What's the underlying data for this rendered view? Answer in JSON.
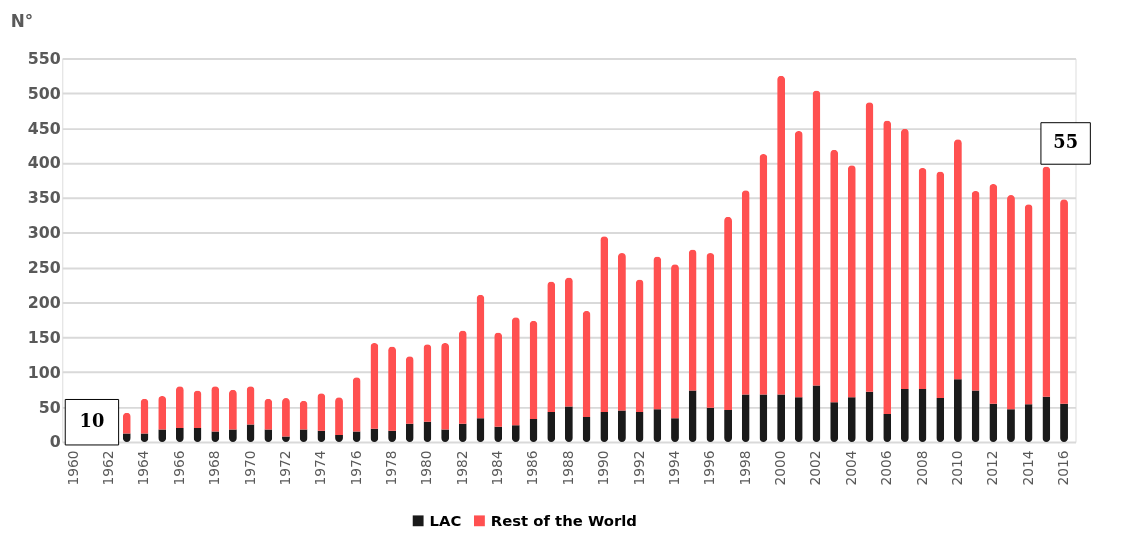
{
  "chart_data": {
    "type": "bar",
    "stacked": true,
    "ylabel": "N°",
    "categories": [
      "1960",
      null,
      "1962",
      null,
      "1964",
      null,
      "1966",
      null,
      "1968",
      null,
      "1970",
      null,
      "1972",
      null,
      "1974",
      null,
      "1976",
      null,
      "1978",
      null,
      "1980",
      null,
      "1982",
      null,
      "1984",
      null,
      "1986",
      null,
      "1988",
      null,
      "1990",
      null,
      "1992",
      null,
      "1994",
      null,
      "1996",
      null,
      "1998",
      null,
      "2000",
      null,
      "2002",
      null,
      "2004",
      null,
      "2006",
      null,
      "2008",
      null,
      "2010",
      null,
      "2012",
      null,
      "2014",
      null,
      "2016"
    ],
    "series": [
      {
        "name": "LAC",
        "color": "#1a1a1a",
        "values": [
          null,
          null,
          null,
          12,
          12,
          18,
          20,
          20,
          15,
          18,
          25,
          18,
          8,
          18,
          16,
          10,
          15,
          19,
          16,
          26,
          29,
          18,
          26,
          34,
          22,
          24,
          33,
          43,
          51,
          36,
          43,
          45,
          43,
          47,
          34,
          74,
          49,
          46,
          68,
          68,
          68,
          64,
          81,
          57,
          64,
          72,
          40,
          76,
          76,
          63,
          90,
          74,
          55,
          47,
          54,
          65,
          55
        ]
      },
      {
        "name": "Rest of the World",
        "color": "#ff5050",
        "values": [
          null,
          null,
          null,
          30,
          50,
          48,
          60,
          54,
          65,
          57,
          55,
          44,
          55,
          41,
          54,
          54,
          78,
          123,
          121,
          97,
          111,
          124,
          134,
          177,
          135,
          155,
          141,
          187,
          185,
          152,
          252,
          226,
          190,
          219,
          221,
          202,
          222,
          277,
          293,
          345,
          457,
          382,
          423,
          362,
          333,
          415,
          421,
          373,
          317,
          325,
          344,
          286,
          315,
          307,
          287,
          330,
          293
        ]
      }
    ],
    "ylim": [
      0,
      550
    ],
    "yticks": [
      0,
      50,
      100,
      150,
      200,
      250,
      300,
      350,
      400,
      450,
      500,
      550
    ],
    "grid": "y",
    "legend": "bottom",
    "annotations": [
      "10",
      "55"
    ]
  }
}
